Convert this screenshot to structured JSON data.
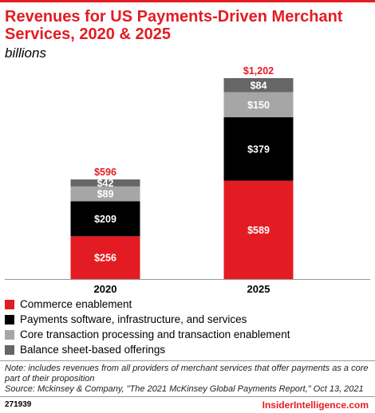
{
  "header": {
    "title": "Revenues for US Payments-Driven Merchant Services, 2020 & 2025",
    "subtitle": "billions"
  },
  "colors": {
    "accent": "#e31c23",
    "commerce": "#e31c23",
    "payments_software": "#000000",
    "core_transaction": "#a6a6a6",
    "balance_sheet": "#666666"
  },
  "chart_data": {
    "type": "bar",
    "stacked": true,
    "categories": [
      "2020",
      "2025"
    ],
    "series": [
      {
        "name": "Commerce enablement",
        "values": [
          256,
          589
        ],
        "labels": [
          "$256",
          "$589"
        ],
        "color": "#e31c23"
      },
      {
        "name": "Payments software, infrastructure, and services",
        "values": [
          209,
          379
        ],
        "labels": [
          "$209",
          "$379"
        ],
        "color": "#000000"
      },
      {
        "name": "Core transaction processing and transaction enablement",
        "values": [
          89,
          150
        ],
        "labels": [
          "$89",
          "$150"
        ],
        "color": "#a6a6a6"
      },
      {
        "name": "Balance sheet-based offerings",
        "values": [
          42,
          84
        ],
        "labels": [
          "$42",
          "$84"
        ],
        "color": "#666666"
      }
    ],
    "totals": [
      596,
      1202
    ],
    "total_labels": [
      "$596",
      "$1,202"
    ],
    "ylim": [
      0,
      1202
    ],
    "grid": false,
    "legend_position": "bottom-left"
  },
  "legend": [
    {
      "label": "Commerce enablement",
      "color": "#e31c23"
    },
    {
      "label": "Payments software, infrastructure, and services",
      "color": "#000000"
    },
    {
      "label": "Core transaction processing and transaction enablement",
      "color": "#a6a6a6"
    },
    {
      "label": "Balance sheet-based offerings",
      "color": "#666666"
    }
  ],
  "footer": {
    "note": "Note: includes revenues from all providers of merchant services that offer payments as a core part of their proposition",
    "source": "Source: Mckinsey & Company, \"The 2021 McKinsey Global Payments Report,\" Oct 13, 2021",
    "id": "271939",
    "brand": "InsiderIntelligence.com"
  }
}
